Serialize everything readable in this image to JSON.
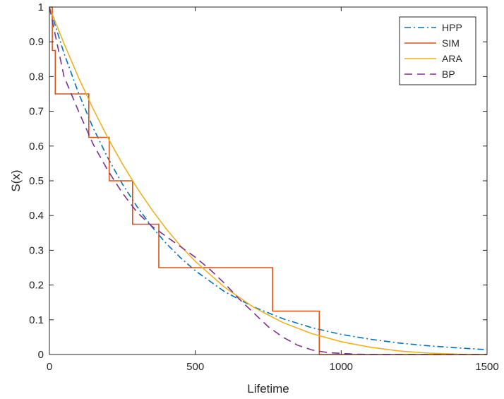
{
  "chart_data": {
    "type": "line",
    "xlabel": "Lifetime",
    "ylabel": "S(x)",
    "xlim": [
      0,
      1500
    ],
    "ylim": [
      0,
      1
    ],
    "xticks": [
      "0",
      "500",
      "1000",
      "1500"
    ],
    "yticks": [
      "0",
      "0.1",
      "0.2",
      "0.3",
      "0.4",
      "0.5",
      "0.6",
      "0.7",
      "0.8",
      "0.9",
      "1"
    ],
    "legend_position": "top-right",
    "grid": false,
    "series": [
      {
        "name": "HPP",
        "color": "#0072BD",
        "style": "dashdot",
        "x": [
          0,
          50,
          100,
          150,
          200,
          250,
          300,
          350,
          400,
          450,
          500,
          600,
          700,
          800,
          900,
          1000,
          1100,
          1200,
          1300,
          1400,
          1500
        ],
        "y": [
          1.0,
          0.867,
          0.752,
          0.652,
          0.566,
          0.491,
          0.426,
          0.369,
          0.32,
          0.278,
          0.241,
          0.181,
          0.137,
          0.103,
          0.077,
          0.058,
          0.044,
          0.033,
          0.025,
          0.019,
          0.014
        ]
      },
      {
        "name": "SIM",
        "color": "#D95319",
        "style": "step",
        "x": [
          0,
          10,
          10,
          20,
          20,
          135,
          135,
          205,
          205,
          285,
          285,
          375,
          375,
          765,
          765,
          925,
          925,
          1500
        ],
        "y": [
          1.0,
          1.0,
          0.875,
          0.875,
          0.75,
          0.75,
          0.625,
          0.625,
          0.5,
          0.5,
          0.375,
          0.375,
          0.25,
          0.25,
          0.125,
          0.125,
          0.0,
          0.0
        ]
      },
      {
        "name": "ARA",
        "color": "#EDB120",
        "style": "solid",
        "x": [
          0,
          50,
          100,
          150,
          200,
          250,
          300,
          350,
          400,
          450,
          500,
          600,
          700,
          800,
          900,
          1000,
          1100,
          1200,
          1300,
          1400,
          1500
        ],
        "y": [
          1.0,
          0.895,
          0.797,
          0.707,
          0.624,
          0.549,
          0.48,
          0.418,
          0.362,
          0.312,
          0.268,
          0.194,
          0.136,
          0.092,
          0.06,
          0.037,
          0.021,
          0.01,
          0.004,
          0.001,
          0.0
        ]
      },
      {
        "name": "BP",
        "color": "#7E2F8E",
        "style": "dashed",
        "x": [
          0,
          50,
          100,
          150,
          200,
          250,
          300,
          350,
          400,
          450,
          500,
          550,
          600,
          650,
          700,
          750,
          800,
          850,
          900,
          950,
          1000,
          1050,
          1100,
          1200,
          1300,
          1400,
          1500
        ],
        "y": [
          1.0,
          0.8,
          0.7,
          0.605,
          0.53,
          0.465,
          0.41,
          0.37,
          0.34,
          0.31,
          0.28,
          0.245,
          0.205,
          0.16,
          0.12,
          0.08,
          0.05,
          0.027,
          0.013,
          0.006,
          0.003,
          0.001,
          0.0,
          0.0,
          0.0,
          0.0,
          0.0
        ]
      }
    ]
  }
}
